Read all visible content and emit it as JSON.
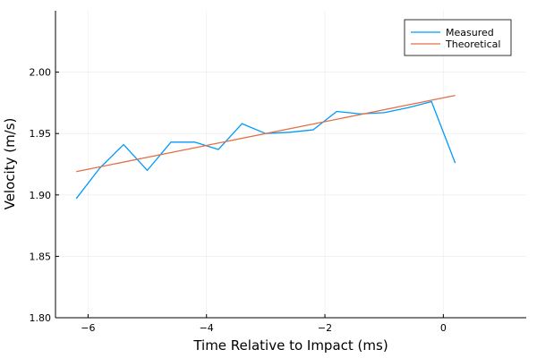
{
  "chart_data": {
    "type": "line",
    "xlabel": "Time Relative to Impact (ms)",
    "ylabel": "Velocity (m/s)",
    "xlim": [
      -6.55,
      1.4
    ],
    "ylim": [
      1.8,
      2.05
    ],
    "xticks": [
      -6,
      -4,
      -2,
      0
    ],
    "xtick_labels": [
      "−6",
      "−4",
      "−2",
      "0"
    ],
    "yticks": [
      1.8,
      1.85,
      1.9,
      1.95,
      2.0
    ],
    "ytick_labels": [
      "1.80",
      "1.85",
      "1.90",
      "1.95",
      "2.00"
    ],
    "grid": true,
    "legend_position": "top-right",
    "series": [
      {
        "name": "Measured",
        "color": "#009AFA",
        "x": [
          -6.2,
          -5.8,
          -5.4,
          -5.0,
          -4.6,
          -4.2,
          -3.8,
          -3.4,
          -3.0,
          -2.6,
          -2.2,
          -1.8,
          -1.4,
          -1.0,
          -0.6,
          -0.2,
          0.2
        ],
        "y": [
          1.897,
          1.922,
          1.941,
          1.92,
          1.943,
          1.943,
          1.937,
          1.958,
          1.95,
          1.951,
          1.953,
          1.968,
          1.966,
          1.967,
          1.971,
          1.976,
          1.926
        ]
      },
      {
        "name": "Theoretical",
        "color": "#E26F46",
        "x": [
          -6.2,
          0.2
        ],
        "y": [
          1.919,
          1.981
        ]
      }
    ]
  }
}
